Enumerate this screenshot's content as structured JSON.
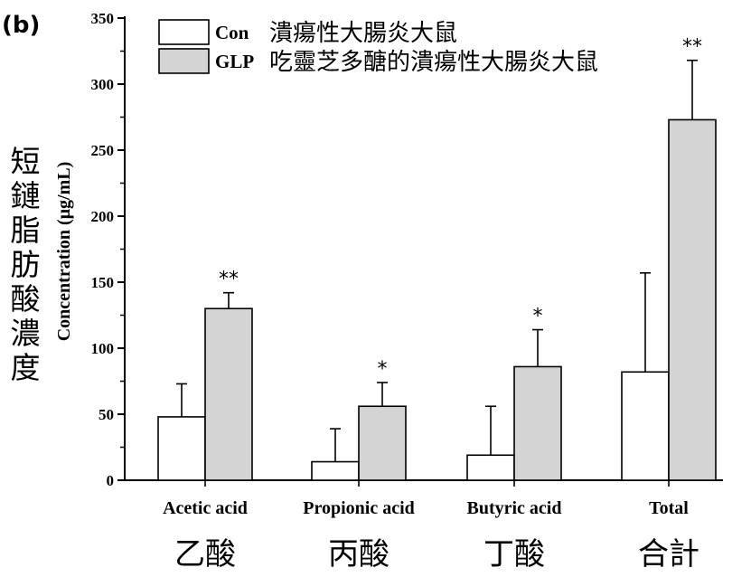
{
  "panel_label": "(b)",
  "chart_data": {
    "type": "bar",
    "ylabel": "Concentration (μg/mL)",
    "ylabel_zh": "短鏈脂肪酸濃度",
    "ylim": [
      0,
      350
    ],
    "yticks": [
      0,
      50,
      100,
      150,
      200,
      250,
      300,
      350
    ],
    "categories": [
      "Acetic acid",
      "Propionic  acid",
      "Butyric acid",
      "Total"
    ],
    "categories_zh": [
      "乙酸",
      "丙酸",
      "丁酸",
      "合計"
    ],
    "series": [
      {
        "name": "Con",
        "name_zh": "潰瘍性大腸炎大鼠",
        "color": "#ffffff",
        "values": [
          48,
          14,
          19,
          82
        ],
        "errors": [
          25,
          25,
          37,
          75
        ],
        "significance": [
          "",
          "",
          "",
          ""
        ]
      },
      {
        "name": "GLP",
        "name_zh": "吃靈芝多醣的潰瘍性大腸炎大鼠",
        "color": "#d4d4d4",
        "values": [
          130,
          56,
          86,
          273
        ],
        "errors": [
          12,
          18,
          28,
          45
        ],
        "significance": [
          "**",
          "*",
          "*",
          "**"
        ]
      }
    ],
    "legend": "top-left",
    "grid": false
  }
}
